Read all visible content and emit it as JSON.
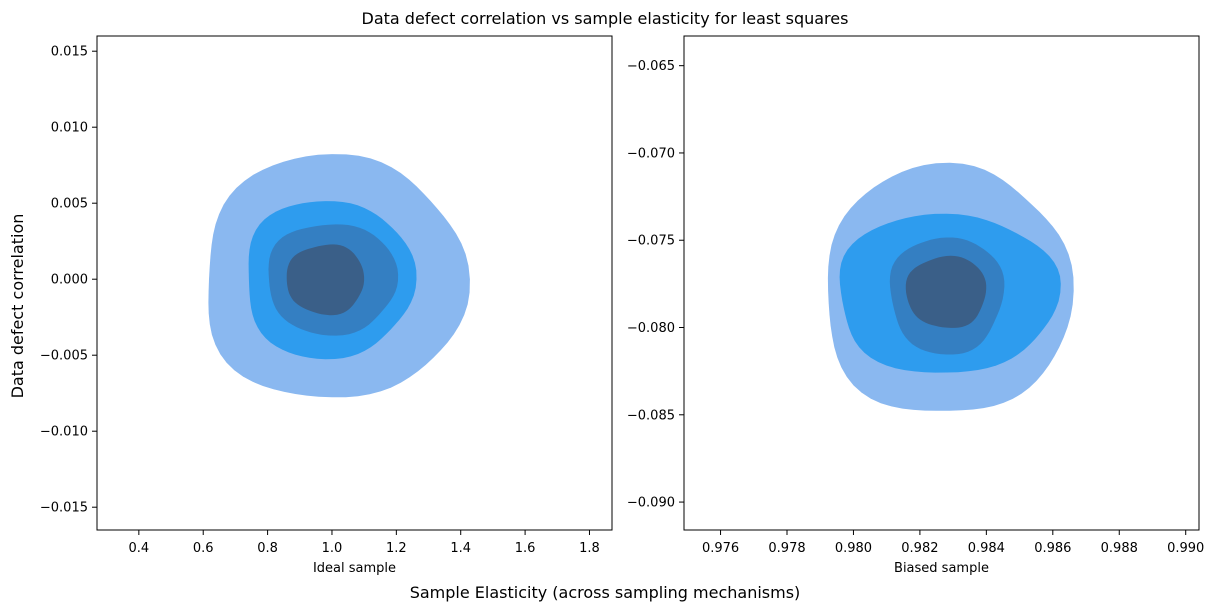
{
  "figure": {
    "suptitle": "Data defect correlation vs sample elasticity for least squares",
    "supxlabel": "Sample Elasticity (across sampling mechanisms)",
    "supylabel": "Data defect correlation"
  },
  "colors": {
    "level1": "#8ab8f0",
    "level2": "#2e9cee",
    "level3": "#347fc2",
    "level4": "#3a5f88"
  },
  "chart_data": [
    {
      "type": "kde_filled_contour",
      "xlabel": "Ideal sample",
      "xlim": [
        0.27,
        1.87
      ],
      "ylim": [
        -0.0165,
        0.016
      ],
      "xticks": [
        0.4,
        0.6,
        0.8,
        1.0,
        1.2,
        1.4,
        1.6,
        1.8
      ],
      "xtick_labels": [
        "0.4",
        "0.6",
        "0.8",
        "1.0",
        "1.2",
        "1.4",
        "1.6",
        "1.8"
      ],
      "yticks": [
        -0.015,
        -0.01,
        -0.005,
        0.0,
        0.005,
        0.01,
        0.015
      ],
      "ytick_labels": [
        "−0.015",
        "−0.010",
        "−0.005",
        "0.000",
        "0.005",
        "0.010",
        "0.015"
      ],
      "contours": [
        {
          "level": 1,
          "center": [
            1.0,
            0.0
          ],
          "x_range": [
            0.6,
            1.41
          ],
          "y_range": [
            -0.0079,
            0.0081
          ]
        },
        {
          "level": 2,
          "center": [
            0.98,
            0.0
          ],
          "x_range": [
            0.73,
            1.25
          ],
          "y_range": [
            -0.0052,
            0.0052
          ]
        },
        {
          "level": 3,
          "center": [
            0.99,
            -0.0001
          ],
          "x_range": [
            0.8,
            1.2
          ],
          "y_range": [
            -0.0036,
            0.0037
          ]
        },
        {
          "level": 4,
          "center": [
            0.98,
            -0.0001
          ],
          "x_range": [
            0.86,
            1.1
          ],
          "y_range": [
            -0.0023,
            0.0023
          ]
        }
      ]
    },
    {
      "type": "kde_filled_contour",
      "xlabel": "Biased sample",
      "xlim": [
        0.9749,
        0.9904
      ],
      "ylim": [
        -0.0916,
        -0.0633
      ],
      "xticks": [
        0.976,
        0.978,
        0.98,
        0.982,
        0.984,
        0.986,
        0.988,
        0.99
      ],
      "xtick_labels": [
        "0.976",
        "0.978",
        "0.980",
        "0.982",
        "0.984",
        "0.986",
        "0.988",
        "0.990"
      ],
      "yticks": [
        -0.09,
        -0.085,
        -0.08,
        -0.075,
        -0.07,
        -0.065
      ],
      "ytick_labels": [
        "−0.090",
        "−0.085",
        "−0.080",
        "−0.075",
        "−0.070",
        "−0.065"
      ],
      "contours": [
        {
          "level": 1,
          "center": [
            0.9829,
            -0.0779
          ],
          "x_range": [
            0.9791,
            0.9865
          ],
          "y_range": [
            -0.085,
            -0.0708
          ]
        },
        {
          "level": 2,
          "center": [
            0.9828,
            -0.078
          ],
          "x_range": [
            0.9795,
            0.9861
          ],
          "y_range": [
            -0.0826,
            -0.0735
          ]
        },
        {
          "level": 3,
          "center": [
            0.9828,
            -0.078
          ],
          "x_range": [
            0.9811,
            0.9845
          ],
          "y_range": [
            -0.0815,
            -0.0748
          ]
        },
        {
          "level": 4,
          "center": [
            0.9828,
            -0.078
          ],
          "x_range": [
            0.9816,
            0.984
          ],
          "y_range": [
            -0.08,
            -0.0759
          ]
        }
      ]
    }
  ]
}
